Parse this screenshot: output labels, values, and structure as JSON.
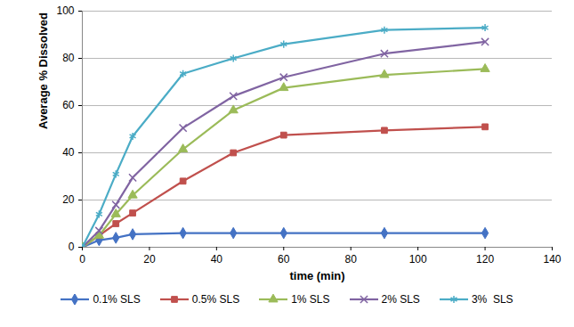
{
  "chart_data": {
    "type": "line",
    "x_label": "time (min)",
    "y_label": "Average % Dissolved",
    "x": [
      0,
      5,
      10,
      15,
      30,
      45,
      60,
      90,
      120
    ],
    "series": [
      {
        "name": "0.1% SLS",
        "color": "#4472c4",
        "marker": "diamond",
        "values": [
          0,
          3,
          4,
          5.5,
          6,
          6,
          6,
          6,
          6
        ]
      },
      {
        "name": "0.5% SLS",
        "color": "#c0504d",
        "marker": "square",
        "values": [
          0,
          5,
          10,
          14.5,
          28,
          40,
          47.5,
          49.5,
          51
        ]
      },
      {
        "name": "1% SLS",
        "color": "#9bbb59",
        "marker": "triangle",
        "values": [
          0,
          5,
          14,
          22,
          41.5,
          58,
          67.5,
          73,
          75.5
        ]
      },
      {
        "name": "2% SLS",
        "color": "#8064a2",
        "marker": "times",
        "values": [
          0,
          7,
          18,
          29.5,
          50.5,
          64,
          72,
          82,
          87
        ]
      },
      {
        "name": "3%  SLS",
        "color": "#4bacc6",
        "marker": "asterisk",
        "values": [
          0,
          14,
          31,
          47,
          73.5,
          80,
          86,
          92,
          93
        ]
      }
    ],
    "xlim": [
      0,
      140
    ],
    "xticks": [
      0,
      20,
      40,
      60,
      80,
      100,
      120,
      140
    ],
    "ylim": [
      0,
      100
    ],
    "yticks": [
      0,
      20,
      40,
      60,
      80,
      100
    ],
    "grid": true,
    "legend": "bottom"
  }
}
